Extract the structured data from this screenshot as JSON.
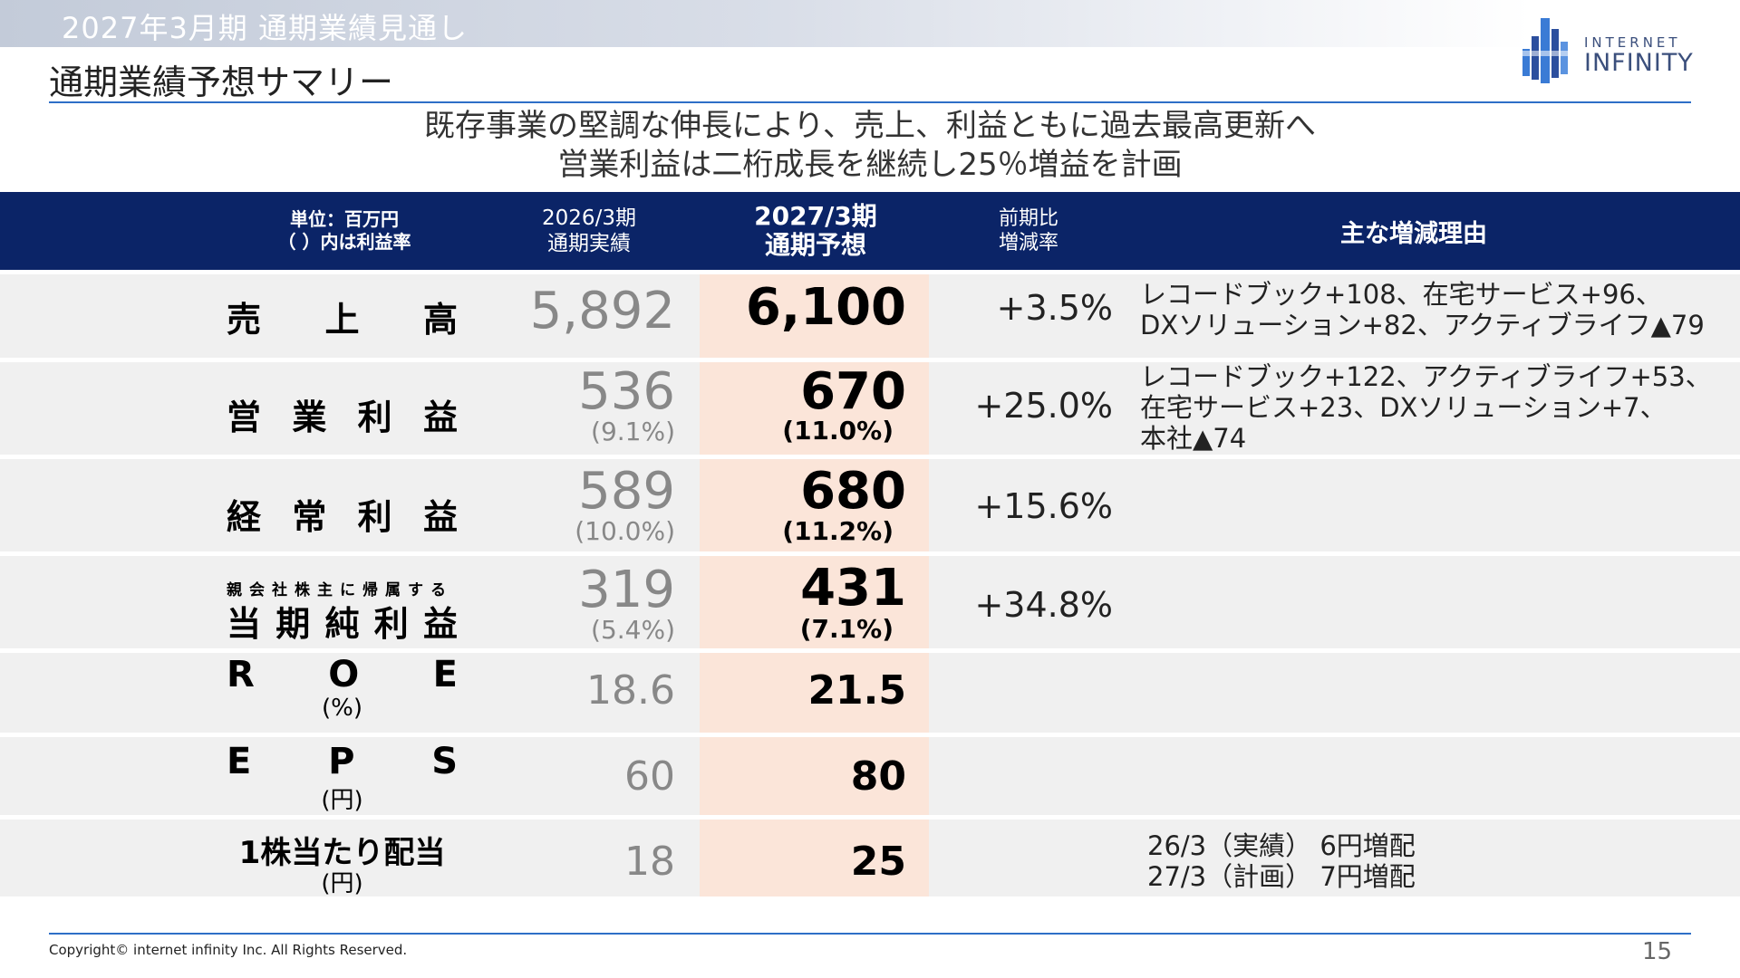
{
  "header": {
    "top_title": "2027年3月期 通期業績見通し",
    "subtitle": "通期業績予想サマリー",
    "logo_line1": "INTERNET",
    "logo_line2": "INFINITY"
  },
  "headline": {
    "line1": "既存事業の堅調な伸長により、売上、利益ともに過去最高更新へ",
    "line2": "営業利益は二桁成長を継続し25％増益を計画"
  },
  "table": {
    "col_unit": {
      "line1": "単位：百万円",
      "line2": "（ ）内は利益率"
    },
    "col_prev": {
      "line1": "2026/3期",
      "line2": "通期実績"
    },
    "col_curr": {
      "line1": "2027/3期",
      "line2": "通期予想"
    },
    "col_change": {
      "line1": "前期比",
      "line2": "増減率"
    },
    "col_reason": "主な増減理由",
    "rows": {
      "sales": {
        "label_chars": [
          "売",
          "上",
          "高"
        ],
        "prev": "5,892",
        "curr": "6,100",
        "change": "+3.5%",
        "reason": [
          "レコードブック+108、在宅サービス+96、",
          "DXソリューション+82、アクティブライフ▲79"
        ]
      },
      "op": {
        "label_chars": [
          "営",
          "業",
          "利",
          "益"
        ],
        "prev": "536",
        "prev_margin": "(9.1%)",
        "curr": "670",
        "curr_margin": "(11.0%)",
        "change": "+25.0%",
        "reason": [
          "レコードブック+122、アクティブライフ+53、",
          "在宅サービス+23、DXソリューション+7、",
          "本社▲74"
        ]
      },
      "ord": {
        "label_chars": [
          "経",
          "常",
          "利",
          "益"
        ],
        "prev": "589",
        "prev_margin": "(10.0%)",
        "curr": "680",
        "curr_margin": "(11.2%)",
        "change": "+15.6%"
      },
      "net": {
        "label_small": "親会社株主に帰属する",
        "label_chars": [
          "当",
          "期",
          "純",
          "利",
          "益"
        ],
        "prev": "319",
        "prev_margin": "(5.4%)",
        "curr": "431",
        "curr_margin": "(7.1%)",
        "change": "+34.8%"
      },
      "roe": {
        "label_chars": [
          "R",
          "O",
          "E"
        ],
        "unit": "(%)",
        "prev": "18.6",
        "curr": "21.5"
      },
      "eps": {
        "label_chars": [
          "E",
          "P",
          "S"
        ],
        "unit": "(円)",
        "prev": "60",
        "curr": "80"
      },
      "div": {
        "label": "1株当たり配当",
        "unit": "(円)",
        "prev": "18",
        "curr": "25",
        "reason": [
          "26/3（実績） 6円増配",
          "27/3（計画） 7円増配"
        ]
      }
    }
  },
  "footer": {
    "copyright": "Copyright© internet infinity Inc. All Rights Reserved.",
    "page": "15"
  },
  "colors": {
    "header_bg": "#0b2467",
    "highlight": "#fbe5d9",
    "row_bg": "#f0f0f0",
    "rule": "#2e6fc7"
  }
}
